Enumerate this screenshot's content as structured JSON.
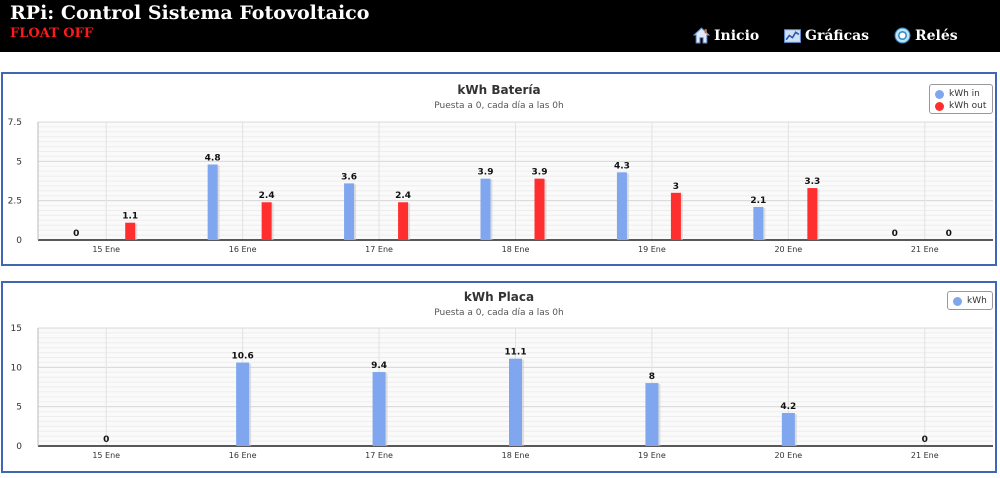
{
  "header": {
    "title": "RPi: Control Sistema Fotovoltaico",
    "status": "FLOAT OFF",
    "nav": [
      {
        "label": "Inicio",
        "icon": "home-icon"
      },
      {
        "label": "Gráficas",
        "icon": "chart-icon"
      },
      {
        "label": "Relés",
        "icon": "relay-icon"
      }
    ]
  },
  "colors": {
    "series_in": "#7fa6ee",
    "series_out": "#ff2f2f",
    "panel_border": "#3f67b4"
  },
  "chart_data": [
    {
      "type": "bar",
      "title": "kWh Batería",
      "subtitle": "Puesta a 0, cada día a las 0h",
      "categories": [
        "15 Ene",
        "16 Ene",
        "17 Ene",
        "18 Ene",
        "19 Ene",
        "20 Ene",
        "21 Ene"
      ],
      "yticks": [
        "0",
        "2.5",
        "5",
        "7.5"
      ],
      "ylim": [
        0,
        7.5
      ],
      "grid": true,
      "legend_position": "top-right",
      "series": [
        {
          "name": "kWh in",
          "color": "#7fa6ee",
          "values": [
            0,
            4.8,
            3.6,
            3.9,
            4.3,
            2.1,
            0
          ],
          "labels": [
            "0",
            "4.8",
            "3.6",
            "3.9",
            "4.3",
            "2.1",
            "0"
          ]
        },
        {
          "name": "kWh out",
          "color": "#ff2f2f",
          "values": [
            1.1,
            2.4,
            2.4,
            3.9,
            3,
            3.3,
            0
          ],
          "labels": [
            "1.1",
            "2.4",
            "2.4",
            "3.9",
            "3",
            "3.3",
            "0"
          ]
        }
      ]
    },
    {
      "type": "bar",
      "title": "kWh Placa",
      "subtitle": "Puesta a 0, cada día a las 0h",
      "categories": [
        "15 Ene",
        "16 Ene",
        "17 Ene",
        "18 Ene",
        "19 Ene",
        "20 Ene",
        "21 Ene"
      ],
      "yticks": [
        "0",
        "5",
        "10",
        "15"
      ],
      "ylim": [
        0,
        15
      ],
      "grid": true,
      "legend_position": "top-right",
      "series": [
        {
          "name": "kWh",
          "color": "#7fa6ee",
          "values": [
            0,
            10.6,
            9.4,
            11.1,
            8,
            4.2,
            0
          ],
          "labels": [
            "0",
            "10.6",
            "9.4",
            "11.1",
            "8",
            "4.2",
            "0"
          ]
        }
      ]
    }
  ]
}
